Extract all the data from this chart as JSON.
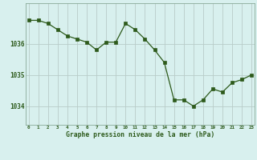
{
  "x": [
    0,
    1,
    2,
    3,
    4,
    5,
    6,
    7,
    8,
    9,
    10,
    11,
    12,
    13,
    14,
    15,
    16,
    17,
    18,
    19,
    20,
    21,
    22,
    23
  ],
  "y": [
    1036.75,
    1036.75,
    1036.65,
    1036.45,
    1036.25,
    1036.15,
    1036.05,
    1035.8,
    1036.05,
    1036.05,
    1036.65,
    1036.45,
    1036.15,
    1035.8,
    1035.4,
    1034.2,
    1034.2,
    1034.0,
    1034.2,
    1034.55,
    1034.45,
    1034.75,
    1034.85,
    1035.0
  ],
  "line_color": "#2d5a1b",
  "marker_color": "#2d5a1b",
  "bg_color": "#d8f0ee",
  "grid_color": "#b8ccc8",
  "xlabel": "Graphe pression niveau de la mer (hPa)",
  "xlabel_color": "#2d5a1b",
  "ylabel_ticks": [
    1034,
    1035,
    1036
  ],
  "ylim": [
    1033.4,
    1037.3
  ],
  "xlim": [
    -0.3,
    23.3
  ],
  "title": ""
}
